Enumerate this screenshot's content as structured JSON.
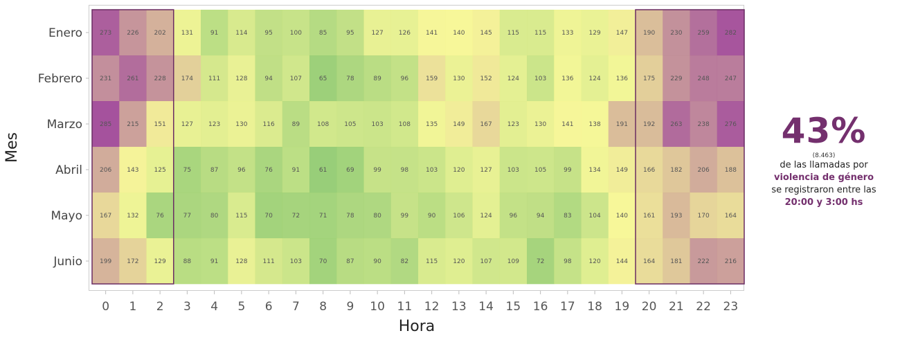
{
  "chart_data": {
    "type": "heatmap",
    "xlabel": "Hora",
    "ylabel": "Mes",
    "x": [
      "0",
      "1",
      "2",
      "3",
      "4",
      "5",
      "6",
      "7",
      "8",
      "9",
      "10",
      "11",
      "12",
      "13",
      "14",
      "15",
      "16",
      "17",
      "18",
      "19",
      "20",
      "21",
      "22",
      "23"
    ],
    "y": [
      "Enero",
      "Febrero",
      "Marzo",
      "Abril",
      "Mayo",
      "Junio"
    ],
    "values": [
      [
        273,
        226,
        202,
        131,
        91,
        114,
        95,
        100,
        85,
        95,
        127,
        126,
        141,
        140,
        145,
        115,
        115,
        133,
        129,
        147,
        190,
        230,
        259,
        282
      ],
      [
        231,
        261,
        228,
        174,
        111,
        128,
        94,
        107,
        65,
        78,
        89,
        96,
        159,
        130,
        152,
        124,
        103,
        136,
        124,
        136,
        175,
        229,
        248,
        247
      ],
      [
        285,
        215,
        151,
        127,
        123,
        130,
        116,
        89,
        108,
        105,
        103,
        108,
        135,
        149,
        167,
        123,
        130,
        141,
        138,
        191,
        192,
        263,
        238,
        276
      ],
      [
        206,
        143,
        125,
        75,
        87,
        96,
        76,
        91,
        61,
        69,
        99,
        98,
        103,
        120,
        127,
        103,
        105,
        99,
        134,
        149,
        166,
        182,
        206,
        188
      ],
      [
        167,
        132,
        76,
        77,
        80,
        115,
        70,
        72,
        71,
        78,
        80,
        99,
        90,
        106,
        124,
        96,
        94,
        83,
        104,
        140,
        161,
        193,
        170,
        164
      ],
      [
        199,
        172,
        129,
        88,
        91,
        128,
        111,
        103,
        70,
        87,
        90,
        82,
        115,
        120,
        107,
        109,
        72,
        98,
        120,
        144,
        164,
        181,
        222,
        216
      ]
    ],
    "highlight_hours": [
      {
        "from": "0",
        "to": "2"
      },
      {
        "from": "20",
        "to": "23"
      }
    ],
    "color_scale": [
      "#8dc96a",
      "#f6f78e",
      "#9b3f92"
    ],
    "highlight_color": "#6a2c63",
    "grid": false
  },
  "annotation": {
    "big": "43%",
    "count": "(8.463)",
    "line1": "de las llamadas por",
    "line2": "violencia de género",
    "line3": "se registraron entre las",
    "line4": "20:00 y 3:00 hs"
  }
}
